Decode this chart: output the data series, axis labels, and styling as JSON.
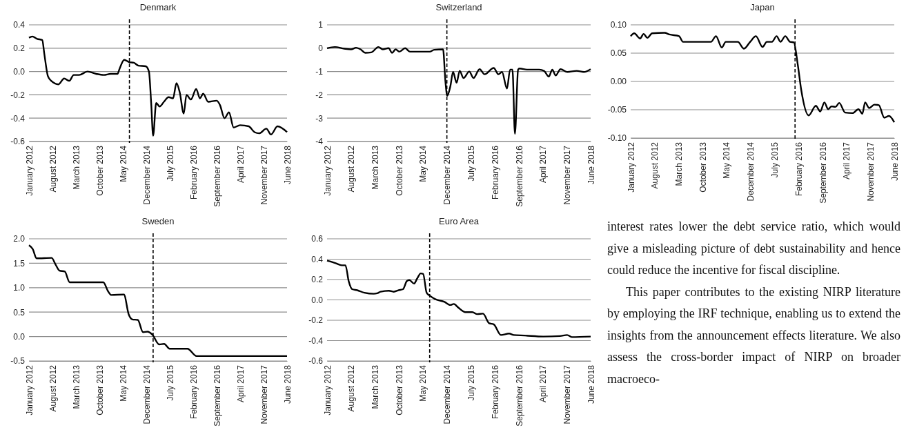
{
  "chart_data": [
    {
      "type": "line",
      "title": "Denmark",
      "xlim": [
        "2012-01",
        "2018-06"
      ],
      "xticks": [
        {
          "value": "2012-01",
          "label": "January 2012"
        },
        {
          "value": "2012-08",
          "label": "August 2012"
        },
        {
          "value": "2013-03",
          "label": "March 2013"
        },
        {
          "value": "2013-10",
          "label": "October 2013"
        },
        {
          "value": "2014-05",
          "label": "May 2014"
        },
        {
          "value": "2014-12",
          "label": "December 2014"
        },
        {
          "value": "2015-07",
          "label": "July 2015"
        },
        {
          "value": "2016-02",
          "label": "February 2016"
        },
        {
          "value": "2016-09",
          "label": "September 2016"
        },
        {
          "value": "2017-04",
          "label": "April 2017"
        },
        {
          "value": "2017-11",
          "label": "November 2017"
        },
        {
          "value": "2018-06",
          "label": "June 2018"
        }
      ],
      "ylim": [
        -0.6,
        0.4
      ],
      "yticks": [
        -0.6,
        -0.4,
        -0.2,
        {
          "value": 0,
          "label": "0.0"
        },
        0.2,
        0.4
      ],
      "grid": "y",
      "ref_lines": [
        {
          "axis": "x",
          "value": "2014-07",
          "line_style": "dashed",
          "color": "#000000"
        }
      ],
      "series": [
        {
          "color": "#000000",
          "x": [
            "2012-01",
            "2012-02",
            "2012-03-15",
            "2012-05",
            "2012-05-18",
            "2012-06-21",
            "2012-07-21",
            "2012-09-25",
            "2012-11-15",
            "2013-01",
            "2013-02-10",
            "2013-04",
            "2013-06-15",
            "2013-09",
            "2013-11-10",
            "2014-01-12",
            "2014-03-15",
            "2014-04",
            "2014-05-15",
            "2014-07",
            "2014-08-10",
            "2014-09-21",
            "2014-11-25",
            "2014-12-25",
            "2015-01-15",
            "2015-02",
            "2015-03",
            "2015-04",
            "2015-05-10",
            "2015-06-21",
            "2015-08",
            "2015-09",
            "2015-10",
            "2015-11-06",
            "2015-12",
            "2016-01-10",
            "2016-02-27",
            "2016-04",
            "2016-05",
            "2016-06-15",
            "2016-09",
            "2016-10",
            "2016-11-10",
            "2016-12-21",
            "2017-02",
            "2017-04",
            "2017-06-18",
            "2017-08-10",
            "2017-09-21",
            "2017-11-25",
            "2018-01-06",
            "2018-03-06",
            "2018-06"
          ],
          "values": [
            0.29,
            0.3,
            0.28,
            0.27,
            0.16,
            -0.04,
            -0.08,
            -0.11,
            -0.06,
            -0.08,
            -0.03,
            -0.03,
            0.0,
            -0.02,
            -0.03,
            -0.02,
            -0.02,
            0.02,
            0.1,
            0.08,
            0.075,
            0.05,
            0.045,
            0.0,
            -0.28,
            -0.55,
            -0.27,
            -0.3,
            -0.26,
            -0.22,
            -0.23,
            -0.1,
            -0.18,
            -0.36,
            -0.2,
            -0.24,
            -0.15,
            -0.23,
            -0.19,
            -0.26,
            -0.25,
            -0.29,
            -0.4,
            -0.35,
            -0.48,
            -0.46,
            -0.47,
            -0.52,
            -0.53,
            -0.49,
            -0.54,
            -0.47,
            -0.52
          ]
        }
      ]
    },
    {
      "type": "line",
      "title": "Switzerland",
      "xlim": [
        "2012-01",
        "2018-06"
      ],
      "xticks": [
        {
          "value": "2012-01",
          "label": "January 2012"
        },
        {
          "value": "2012-08",
          "label": "August 2012"
        },
        {
          "value": "2013-03",
          "label": "March 2013"
        },
        {
          "value": "2013-10",
          "label": "October 2013"
        },
        {
          "value": "2014-05",
          "label": "May 2014"
        },
        {
          "value": "2014-12",
          "label": "December 2014"
        },
        {
          "value": "2015-07",
          "label": "July 2015"
        },
        {
          "value": "2016-02",
          "label": "February 2016"
        },
        {
          "value": "2016-09",
          "label": "September 2016"
        },
        {
          "value": "2017-04",
          "label": "April 2017"
        },
        {
          "value": "2017-11",
          "label": "November 2017"
        },
        {
          "value": "2018-06",
          "label": "June 2018"
        }
      ],
      "ylim": [
        -4,
        1
      ],
      "yticks": [
        -4,
        -3,
        -2,
        -1,
        0,
        1
      ],
      "grid": "y",
      "ref_lines": [
        {
          "axis": "x",
          "value": "2014-12",
          "line_style": "dashed",
          "color": "#000000"
        }
      ],
      "series": [
        {
          "color": "#000000",
          "x": [
            "2012-01",
            "2012-03-10",
            "2012-06",
            "2012-08",
            "2012-09-15",
            "2012-10-25",
            "2012-12-06",
            "2013-01-28",
            "2013-04",
            "2013-05-10",
            "2013-07",
            "2013-08",
            "2013-09",
            "2013-10-04",
            "2013-11-25",
            "2014-01-06",
            "2014-07",
            "2014-08-10",
            "2014-10-28",
            "2014-11-18",
            "2014-12-04",
            "2015-01",
            "2015-01-25",
            "2015-02-25",
            "2015-03-25",
            "2015-04-28",
            "2015-06-18",
            "2015-07-25",
            "2015-09-18",
            "2015-11",
            "2016-01-21",
            "2016-03-04",
            "2016-04-04",
            "2016-05-18",
            "2016-06-15",
            "2016-07-06",
            "2016-07-28",
            "2016-08-25",
            "2016-09-06",
            "2016-11-18",
            "2017-03",
            "2017-04-12",
            "2017-05-25",
            "2017-06-25",
            "2017-07-25",
            "2017-09-06",
            "2017-11-06",
            "2018-01-28",
            "2018-04",
            "2018-06"
          ],
          "values": [
            0.0,
            0.05,
            -0.02,
            -0.05,
            0.02,
            -0.05,
            -0.2,
            -0.18,
            0.05,
            -0.05,
            0.0,
            -0.2,
            -0.05,
            -0.15,
            0.0,
            -0.15,
            -0.15,
            -0.07,
            -0.05,
            -1.43,
            -2.04,
            -1.63,
            -1.02,
            -1.48,
            -0.97,
            -1.28,
            -1.0,
            -1.28,
            -0.9,
            -1.12,
            -0.85,
            -1.12,
            -1.02,
            -1.73,
            -0.92,
            -0.92,
            -3.67,
            -0.92,
            -0.87,
            -0.92,
            -0.92,
            -0.97,
            -1.22,
            -0.92,
            -1.17,
            -0.9,
            -1.02,
            -0.97,
            -1.02,
            -0.9
          ]
        }
      ]
    },
    {
      "type": "line",
      "title": "Japan",
      "xlim": [
        "2012-01",
        "2018-06"
      ],
      "xticks": [
        {
          "value": "2012-01",
          "label": "January 2012"
        },
        {
          "value": "2012-08",
          "label": "August 2012"
        },
        {
          "value": "2013-03",
          "label": "March 2013"
        },
        {
          "value": "2013-10",
          "label": "October 2013"
        },
        {
          "value": "2014-05",
          "label": "May 2014"
        },
        {
          "value": "2014-12",
          "label": "December 2014"
        },
        {
          "value": "2015-07",
          "label": "July 2015"
        },
        {
          "value": "2016-02",
          "label": "February 2016"
        },
        {
          "value": "2016-09",
          "label": "September 2016"
        },
        {
          "value": "2017-04",
          "label": "April 2017"
        },
        {
          "value": "2017-11",
          "label": "November 2017"
        },
        {
          "value": "2018-06",
          "label": "June 2018"
        }
      ],
      "ylim": [
        -0.1,
        0.1
      ],
      "yticks": [
        {
          "value": -0.1,
          "label": "-0.10"
        },
        {
          "value": -0.05,
          "label": "-0.05"
        },
        {
          "value": 0,
          "label": "0.00"
        },
        {
          "value": 0.05,
          "label": "0.05"
        },
        {
          "value": 0.1,
          "label": "0.10"
        }
      ],
      "grid": "y",
      "ref_lines": [
        {
          "axis": "x",
          "value": "2016-01",
          "line_style": "dashed",
          "color": "#000000"
        }
      ],
      "series": [
        {
          "color": "#000000",
          "x": [
            "2012-01",
            "2012-02",
            "2012-03-25",
            "2012-04-25",
            "2012-05-28",
            "2012-07-10",
            "2012-10-28",
            "2012-12-10",
            "2013-03-06",
            "2013-04-10",
            "2013-12-15",
            "2014-01-28",
            "2014-03-21",
            "2014-04-25",
            "2014-08-10",
            "2014-10-04",
            "2014-11-28",
            "2015-01-18",
            "2015-03-18",
            "2015-04-25",
            "2015-06-10",
            "2015-07-21",
            "2015-08-25",
            "2015-10-06",
            "2015-11-18",
            "2015-12-21",
            "2016-01-25",
            "2016-02-25",
            "2016-05",
            "2016-07-04",
            "2016-08-12",
            "2016-09-18",
            "2016-10-21",
            "2016-11-21",
            "2016-12-25",
            "2017-01-28",
            "2017-03-21",
            "2017-05-25",
            "2017-07-18",
            "2017-08-21",
            "2017-09-15",
            "2017-10-21",
            "2017-12-06",
            "2018-01-15",
            "2018-03-04",
            "2018-04-15",
            "2018-06"
          ],
          "values": [
            0.08,
            0.085,
            0.076,
            0.084,
            0.077,
            0.085,
            0.086,
            0.083,
            0.08,
            0.07,
            0.07,
            0.08,
            0.06,
            0.07,
            0.07,
            0.058,
            0.07,
            0.08,
            0.061,
            0.07,
            0.07,
            0.08,
            0.07,
            0.08,
            0.07,
            0.069,
            0.03,
            -0.015,
            -0.06,
            -0.043,
            -0.053,
            -0.037,
            -0.049,
            -0.044,
            -0.045,
            -0.038,
            -0.055,
            -0.056,
            -0.049,
            -0.057,
            -0.037,
            -0.047,
            -0.041,
            -0.042,
            -0.064,
            -0.061,
            -0.072
          ]
        }
      ]
    },
    {
      "type": "line",
      "title": "Sweden",
      "xlim": [
        "2012-01",
        "2018-06"
      ],
      "xticks": [
        {
          "value": "2012-01",
          "label": "January 2012"
        },
        {
          "value": "2012-08",
          "label": "August 2012"
        },
        {
          "value": "2013-03",
          "label": "March 2013"
        },
        {
          "value": "2013-10",
          "label": "October 2013"
        },
        {
          "value": "2014-05",
          "label": "May 2014"
        },
        {
          "value": "2014-12",
          "label": "December 2014"
        },
        {
          "value": "2015-07",
          "label": "July 2015"
        },
        {
          "value": "2016-02",
          "label": "February 2016"
        },
        {
          "value": "2016-09",
          "label": "September 2016"
        },
        {
          "value": "2017-04",
          "label": "April 2017"
        },
        {
          "value": "2017-11",
          "label": "November 2017"
        },
        {
          "value": "2018-06",
          "label": "June 2018"
        }
      ],
      "ylim": [
        -0.5,
        2.0
      ],
      "yticks": [
        -0.5,
        {
          "value": 0,
          "label": "0.0"
        },
        0.5,
        {
          "value": 1,
          "label": "1.0"
        },
        1.5,
        {
          "value": 2,
          "label": "2.0"
        }
      ],
      "grid": "y",
      "ref_lines": [
        {
          "axis": "x",
          "value": "2015-02",
          "line_style": "dashed",
          "color": "#000000"
        }
      ],
      "series": [
        {
          "color": "#000000",
          "x": [
            "2012-01",
            "2012-02-04",
            "2012-03-10",
            "2012-07-25",
            "2012-08-28",
            "2012-10-04",
            "2012-11-21",
            "2013-01-04",
            "2013-11-06",
            "2013-12-18",
            "2014-01-18",
            "2014-05-12",
            "2014-06-25",
            "2014-07-28",
            "2014-09-15",
            "2014-11",
            "2014-12-12",
            "2015-01-25",
            "2015-03-28",
            "2015-05-12",
            "2015-07",
            "2015-12-10",
            "2016-03",
            "2018-06"
          ],
          "values": [
            1.87,
            1.79,
            1.6,
            1.61,
            1.48,
            1.35,
            1.33,
            1.11,
            1.11,
            0.93,
            0.85,
            0.86,
            0.45,
            0.35,
            0.34,
            0.09,
            0.1,
            0.04,
            -0.16,
            -0.15,
            -0.25,
            -0.25,
            -0.4,
            -0.4
          ]
        }
      ]
    },
    {
      "type": "line",
      "title": "Euro Area",
      "xlim": [
        "2012-01",
        "2018-06"
      ],
      "xticks": [
        {
          "value": "2012-01",
          "label": "January 2012"
        },
        {
          "value": "2012-08",
          "label": "August 2012"
        },
        {
          "value": "2013-03",
          "label": "March 2013"
        },
        {
          "value": "2013-10",
          "label": "October 2013"
        },
        {
          "value": "2014-05",
          "label": "May 2014"
        },
        {
          "value": "2014-12",
          "label": "December 2014"
        },
        {
          "value": "2015-07",
          "label": "July 2015"
        },
        {
          "value": "2016-02",
          "label": "February 2016"
        },
        {
          "value": "2016-09",
          "label": "September 2016"
        },
        {
          "value": "2017-04",
          "label": "April 2017"
        },
        {
          "value": "2017-11",
          "label": "November 2017"
        },
        {
          "value": "2018-06",
          "label": "June 2018"
        }
      ],
      "ylim": [
        -0.6,
        0.6
      ],
      "yticks": [
        -0.6,
        -0.4,
        -0.2,
        {
          "value": 0,
          "label": "0.0"
        },
        0.2,
        0.4,
        0.6
      ],
      "grid": "y",
      "ref_lines": [
        {
          "axis": "x",
          "value": "2014-07",
          "line_style": "dashed",
          "color": "#000000"
        }
      ],
      "series": [
        {
          "color": "#000000",
          "x": [
            "2012-01",
            "2012-03-18",
            "2012-05-10",
            "2012-06-12",
            "2012-07-12",
            "2012-08-12",
            "2012-09-25",
            "2012-11-28",
            "2013-02-18",
            "2013-03-21",
            "2013-04-21",
            "2013-07-04",
            "2013-08-15",
            "2013-09-28",
            "2013-11-06",
            "2013-12-10",
            "2014-01",
            "2014-02-12",
            "2014-03-12",
            "2014-04-12",
            "2014-05-04",
            "2014-06-04",
            "2014-07-04",
            "2014-08-15",
            "2014-11-10",
            "2015-01",
            "2015-02",
            "2015-03-12",
            "2015-05-15",
            "2015-07-15",
            "2015-08-28",
            "2015-10-18",
            "2015-12-12",
            "2016-01-21",
            "2016-03-25",
            "2016-06-06",
            "2016-07-18",
            "2016-10-21",
            "2017-04-06",
            "2017-09",
            "2017-11-04",
            "2017-12-15",
            "2018-06"
          ],
          "values": [
            0.385,
            0.36,
            0.34,
            0.34,
            0.18,
            0.105,
            0.095,
            0.07,
            0.06,
            0.065,
            0.08,
            0.09,
            0.08,
            0.095,
            0.105,
            0.185,
            0.195,
            0.16,
            0.21,
            0.26,
            0.255,
            0.07,
            0.04,
            0.01,
            -0.02,
            -0.05,
            -0.04,
            -0.075,
            -0.12,
            -0.12,
            -0.14,
            -0.135,
            -0.23,
            -0.24,
            -0.345,
            -0.33,
            -0.345,
            -0.35,
            -0.36,
            -0.355,
            -0.345,
            -0.365,
            -0.36
          ]
        }
      ]
    },
    {
      "type": "other",
      "annotations": [
        "interest rates lower the debt service ratio, which would give a misleading picture of debt sustainability and hence could reduce the incentive for fiscal discipline.",
        "This paper contributes to the existing NIRP literature by employing the IRF technique, enabling us to extend the insights from the announcement effects literature. We also assess the cross-border impact of NIRP on broader macroeco-"
      ]
    }
  ]
}
